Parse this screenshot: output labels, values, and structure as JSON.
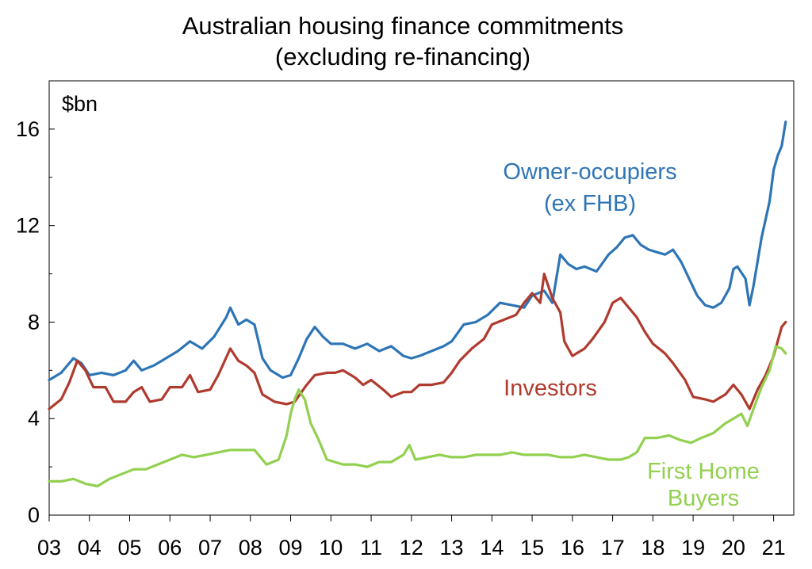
{
  "chart_data": {
    "type": "line",
    "title": "Australian housing finance commitments",
    "subtitle": "(excluding re-financing)",
    "unit_label": "$bn",
    "ylim": [
      0,
      18
    ],
    "xlim": [
      2003,
      2021.5
    ],
    "y_ticks": [
      "0",
      "4",
      "8",
      "12",
      "16"
    ],
    "x_ticks": [
      "03",
      "04",
      "05",
      "06",
      "07",
      "08",
      "09",
      "10",
      "11",
      "12",
      "13",
      "14",
      "15",
      "16",
      "17",
      "18",
      "19",
      "20",
      "21"
    ],
    "grid": false,
    "series": [
      {
        "name": "Owner-occupiers (ex FHB)",
        "label_lines": [
          "Owner-occupiers",
          "(ex FHB)"
        ],
        "color": "#2e75b6",
        "x": [
          2003.0,
          2003.3,
          2003.6,
          2003.8,
          2004.0,
          2004.3,
          2004.6,
          2004.9,
          2005.1,
          2005.3,
          2005.6,
          2005.9,
          2006.2,
          2006.5,
          2006.8,
          2007.1,
          2007.4,
          2007.5,
          2007.7,
          2007.9,
          2008.1,
          2008.3,
          2008.5,
          2008.8,
          2009.0,
          2009.2,
          2009.4,
          2009.6,
          2009.8,
          2010.0,
          2010.3,
          2010.6,
          2010.9,
          2011.2,
          2011.5,
          2011.8,
          2012.0,
          2012.2,
          2012.5,
          2012.8,
          2013.0,
          2013.3,
          2013.6,
          2013.9,
          2014.2,
          2014.5,
          2014.8,
          2015.0,
          2015.3,
          2015.5,
          2015.7,
          2015.9,
          2016.1,
          2016.3,
          2016.6,
          2016.9,
          2017.1,
          2017.3,
          2017.5,
          2017.7,
          2017.9,
          2018.1,
          2018.3,
          2018.5,
          2018.7,
          2018.9,
          2019.1,
          2019.3,
          2019.5,
          2019.7,
          2019.9,
          2020.0,
          2020.1,
          2020.3,
          2020.4,
          2020.5,
          2020.7,
          2020.9,
          2021.0,
          2021.1,
          2021.2,
          2021.3
        ],
        "values": [
          5.6,
          5.9,
          6.5,
          6.3,
          5.8,
          5.9,
          5.8,
          6.0,
          6.4,
          6.0,
          6.2,
          6.5,
          6.8,
          7.2,
          6.9,
          7.4,
          8.2,
          8.6,
          7.9,
          8.1,
          7.9,
          6.5,
          6.0,
          5.7,
          5.8,
          6.5,
          7.3,
          7.8,
          7.4,
          7.1,
          7.1,
          6.9,
          7.1,
          6.8,
          7.0,
          6.6,
          6.5,
          6.6,
          6.8,
          7.0,
          7.2,
          7.9,
          8.0,
          8.3,
          8.8,
          8.7,
          8.6,
          9.1,
          9.3,
          8.8,
          10.8,
          10.4,
          10.2,
          10.3,
          10.1,
          10.8,
          11.1,
          11.5,
          11.6,
          11.2,
          11.0,
          10.9,
          10.8,
          11.0,
          10.5,
          9.8,
          9.1,
          8.7,
          8.6,
          8.8,
          9.4,
          10.2,
          10.3,
          9.8,
          8.7,
          9.5,
          11.5,
          13.0,
          14.3,
          14.9,
          15.3,
          16.3
        ]
      },
      {
        "name": "Investors",
        "label_lines": [
          "Investors"
        ],
        "color": "#b03a2e",
        "x": [
          2003.0,
          2003.3,
          2003.5,
          2003.7,
          2003.9,
          2004.1,
          2004.4,
          2004.6,
          2004.9,
          2005.1,
          2005.3,
          2005.5,
          2005.8,
          2006.0,
          2006.3,
          2006.5,
          2006.7,
          2007.0,
          2007.2,
          2007.5,
          2007.7,
          2007.9,
          2008.1,
          2008.3,
          2008.6,
          2008.9,
          2009.1,
          2009.4,
          2009.6,
          2009.9,
          2010.1,
          2010.3,
          2010.6,
          2010.8,
          2011.0,
          2011.3,
          2011.5,
          2011.8,
          2012.0,
          2012.2,
          2012.5,
          2012.8,
          2013.0,
          2013.2,
          2013.5,
          2013.8,
          2014.0,
          2014.3,
          2014.6,
          2014.8,
          2015.0,
          2015.2,
          2015.3,
          2015.5,
          2015.7,
          2015.8,
          2016.0,
          2016.3,
          2016.5,
          2016.8,
          2017.0,
          2017.2,
          2017.4,
          2017.6,
          2017.8,
          2018.0,
          2018.3,
          2018.5,
          2018.8,
          2019.0,
          2019.3,
          2019.5,
          2019.8,
          2020.0,
          2020.2,
          2020.4,
          2020.6,
          2020.8,
          2021.0,
          2021.2,
          2021.3
        ],
        "values": [
          4.4,
          4.8,
          5.5,
          6.4,
          6.0,
          5.3,
          5.3,
          4.7,
          4.7,
          5.1,
          5.3,
          4.7,
          4.8,
          5.3,
          5.3,
          5.8,
          5.1,
          5.2,
          5.8,
          6.9,
          6.4,
          6.2,
          5.9,
          5.0,
          4.7,
          4.6,
          4.7,
          5.4,
          5.8,
          5.9,
          5.9,
          6.0,
          5.7,
          5.4,
          5.6,
          5.2,
          4.9,
          5.1,
          5.1,
          5.4,
          5.4,
          5.5,
          5.9,
          6.4,
          6.9,
          7.3,
          7.9,
          8.1,
          8.3,
          8.8,
          9.2,
          8.8,
          10.0,
          9.0,
          8.4,
          7.2,
          6.6,
          6.9,
          7.3,
          8.0,
          8.8,
          9.0,
          8.6,
          8.2,
          7.6,
          7.1,
          6.7,
          6.3,
          5.6,
          4.9,
          4.8,
          4.7,
          5.0,
          5.4,
          5.0,
          4.4,
          5.2,
          5.8,
          6.6,
          7.8,
          8.0
        ]
      },
      {
        "name": "First Home Buyers",
        "label_lines": [
          "First Home",
          "Buyers"
        ],
        "color": "#92d050",
        "x": [
          2003.0,
          2003.3,
          2003.6,
          2003.9,
          2004.2,
          2004.5,
          2004.8,
          2005.1,
          2005.4,
          2005.7,
          2006.0,
          2006.3,
          2006.6,
          2006.9,
          2007.2,
          2007.5,
          2007.8,
          2008.1,
          2008.4,
          2008.7,
          2008.9,
          2009.0,
          2009.1,
          2009.2,
          2009.35,
          2009.5,
          2009.7,
          2009.9,
          2010.1,
          2010.3,
          2010.6,
          2010.9,
          2011.2,
          2011.5,
          2011.8,
          2011.95,
          2012.1,
          2012.4,
          2012.7,
          2013.0,
          2013.3,
          2013.6,
          2013.9,
          2014.2,
          2014.5,
          2014.8,
          2015.1,
          2015.4,
          2015.7,
          2016.0,
          2016.3,
          2016.6,
          2016.9,
          2017.2,
          2017.4,
          2017.6,
          2017.8,
          2018.1,
          2018.4,
          2018.7,
          2018.95,
          2019.2,
          2019.5,
          2019.8,
          2020.0,
          2020.2,
          2020.35,
          2020.5,
          2020.7,
          2020.9,
          2021.05,
          2021.2,
          2021.3
        ],
        "values": [
          1.4,
          1.4,
          1.5,
          1.3,
          1.2,
          1.5,
          1.7,
          1.9,
          1.9,
          2.1,
          2.3,
          2.5,
          2.4,
          2.5,
          2.6,
          2.7,
          2.7,
          2.7,
          2.1,
          2.3,
          3.3,
          4.2,
          4.8,
          5.2,
          4.8,
          3.8,
          3.1,
          2.3,
          2.2,
          2.1,
          2.1,
          2.0,
          2.2,
          2.2,
          2.5,
          2.9,
          2.3,
          2.4,
          2.5,
          2.4,
          2.4,
          2.5,
          2.5,
          2.5,
          2.6,
          2.5,
          2.5,
          2.5,
          2.4,
          2.4,
          2.5,
          2.4,
          2.3,
          2.3,
          2.4,
          2.6,
          3.2,
          3.2,
          3.3,
          3.1,
          3.0,
          3.2,
          3.4,
          3.8,
          4.0,
          4.2,
          3.7,
          4.4,
          5.3,
          6.0,
          7.0,
          6.9,
          6.7
        ]
      }
    ]
  }
}
